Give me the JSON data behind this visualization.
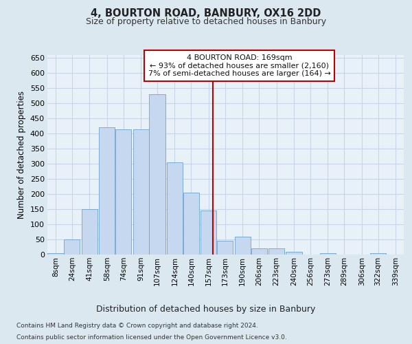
{
  "title": "4, BOURTON ROAD, BANBURY, OX16 2DD",
  "subtitle": "Size of property relative to detached houses in Banbury",
  "xlabel": "Distribution of detached houses by size in Banbury",
  "ylabel": "Number of detached properties",
  "footer1": "Contains HM Land Registry data © Crown copyright and database right 2024.",
  "footer2": "Contains public sector information licensed under the Open Government Licence v3.0.",
  "annotation_title": "4 BOURTON ROAD: 169sqm",
  "annotation_line1": "← 93% of detached houses are smaller (2,160)",
  "annotation_line2": "7% of semi-detached houses are larger (164) →",
  "property_size": 169,
  "bar_edges": [
    8,
    24,
    41,
    58,
    74,
    91,
    107,
    124,
    140,
    157,
    173,
    190,
    206,
    223,
    240,
    256,
    273,
    289,
    306,
    322,
    339
  ],
  "bar_heights": [
    5,
    50,
    150,
    420,
    415,
    415,
    530,
    305,
    205,
    145,
    45,
    60,
    20,
    20,
    10,
    0,
    5,
    0,
    0,
    5
  ],
  "bar_color": "#c5d8ef",
  "bar_edgecolor": "#6ba3ce",
  "vline_color": "#bb0000",
  "vline_x": 169,
  "annotation_box_color": "#ffffff",
  "annotation_box_edgecolor": "#bb0000",
  "ylim": [
    0,
    660
  ],
  "yticks": [
    0,
    50,
    100,
    150,
    200,
    250,
    300,
    350,
    400,
    450,
    500,
    550,
    600,
    650
  ],
  "grid_color": "#c8d4e8",
  "bg_color": "#dce8f0",
  "plot_bg_color": "#e8f0f8"
}
